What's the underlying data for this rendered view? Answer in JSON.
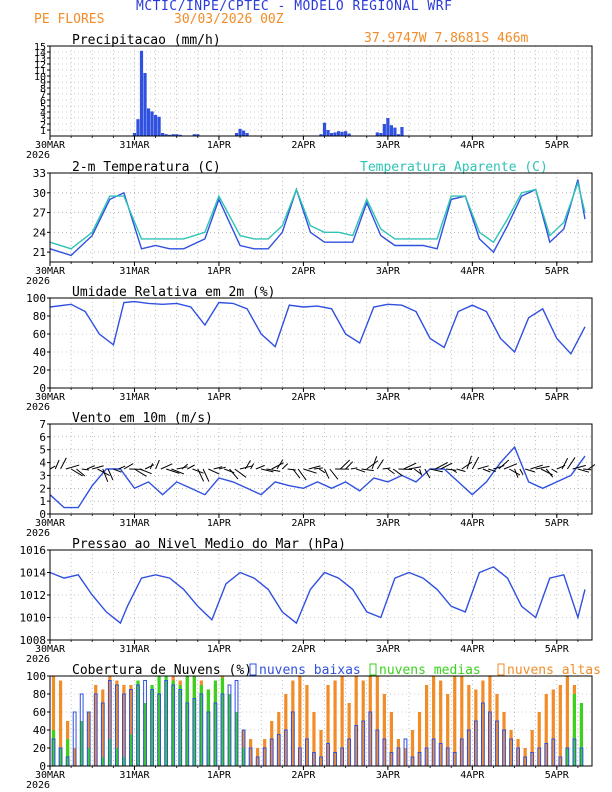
{
  "header": {
    "title": "MCTIC/INPE/CPTEC - MODELO REGIONAL WRF",
    "location": "PE FLORES",
    "run": "30/03/2026 00Z",
    "coords": "37.9747W 7.8681S 466m"
  },
  "colors": {
    "title": "#2b3bd9",
    "orange": "#f28c28",
    "blue": "#3050e0",
    "cyan": "#2ec4b6",
    "green": "#3bd11f",
    "black": "#000000",
    "grid": "#999999"
  },
  "days": {
    "labels": [
      "30MAR",
      "31MAR",
      "1APR",
      "2APR",
      "3APR",
      "4APR",
      "5APR"
    ],
    "year": "2026"
  },
  "chart_data": [
    {
      "id": "precip",
      "type": "bar",
      "title": "Precipitacao (mm/h)",
      "ylim": [
        0,
        15
      ],
      "yticks": [
        1,
        2,
        3,
        4,
        5,
        6,
        7,
        8,
        9,
        10,
        11,
        12,
        13,
        14,
        15
      ],
      "x_unit": "hours since 30/03/2026 00Z",
      "x": [
        24,
        25,
        26,
        27,
        28,
        29,
        30,
        31,
        32,
        33,
        34,
        35,
        36,
        37,
        41,
        42,
        53,
        54,
        55,
        56,
        77,
        78,
        79,
        80,
        81,
        82,
        83,
        84,
        85,
        93,
        94,
        95,
        96,
        97,
        98,
        99,
        100
      ],
      "values": [
        0.5,
        2.8,
        14.2,
        10.5,
        4.6,
        4.1,
        3.5,
        3.2,
        0.5,
        0.3,
        0.2,
        0.3,
        0.3,
        0.2,
        0.3,
        0.3,
        0.5,
        1.2,
        0.9,
        0.5,
        0.3,
        2.2,
        1.0,
        0.5,
        0.6,
        0.8,
        0.7,
        0.8,
        0.4,
        0.6,
        0.5,
        2.0,
        3.0,
        1.8,
        1.4,
        0.3,
        1.5
      ]
    },
    {
      "id": "temp",
      "type": "line",
      "title": "2-m Temperatura (C)",
      "ylim": [
        19.5,
        33
      ],
      "yticks": [
        21,
        24,
        27,
        30,
        33
      ],
      "series": [
        {
          "name": "Temperatura (C)",
          "x": [
            0,
            6,
            12,
            17,
            21,
            26,
            30,
            34,
            38,
            44,
            48,
            54,
            58,
            62,
            66,
            70,
            74,
            78,
            82,
            86,
            90,
            94,
            98,
            102,
            106,
            110,
            114,
            118,
            122,
            126,
            130,
            134,
            138,
            142,
            146,
            150,
            152
          ],
          "values": [
            21.5,
            20.5,
            23.5,
            29,
            30,
            21.5,
            22,
            21.5,
            21.5,
            23,
            29,
            22,
            21.5,
            21.5,
            24,
            30.5,
            24,
            22.5,
            22.5,
            22.5,
            28.5,
            23.5,
            22,
            22,
            22,
            21.5,
            29,
            29.5,
            23,
            21,
            25,
            29.5,
            30.5,
            22.5,
            24.5,
            32,
            26
          ]
        },
        {
          "name": "Temperatura Aparente (C)",
          "x": [
            0,
            6,
            12,
            17,
            21,
            26,
            30,
            34,
            38,
            44,
            48,
            54,
            58,
            62,
            66,
            70,
            74,
            78,
            82,
            86,
            90,
            94,
            98,
            102,
            106,
            110,
            114,
            118,
            122,
            126,
            130,
            134,
            138,
            142,
            146,
            150,
            152
          ],
          "values": [
            22.5,
            21.5,
            24,
            29.5,
            29.5,
            23,
            23,
            23,
            23,
            24,
            29.5,
            23.5,
            23,
            23,
            25,
            30.5,
            25,
            24,
            24,
            23.5,
            29,
            24.5,
            23,
            23,
            23,
            23,
            29.5,
            29.5,
            24,
            22.5,
            26,
            30,
            30.5,
            23.5,
            25.5,
            31.5,
            27
          ]
        }
      ],
      "legend": [
        "Temperatura Aparente (C)"
      ]
    },
    {
      "id": "rh",
      "type": "line",
      "title": "Umidade Relativa em 2m (%)",
      "ylim": [
        0,
        100
      ],
      "yticks": [
        0,
        20,
        40,
        60,
        80,
        100
      ],
      "series": [
        {
          "name": "Umidade Relativa",
          "x": [
            0,
            6,
            10,
            14,
            18,
            21,
            24,
            28,
            32,
            36,
            40,
            44,
            48,
            52,
            56,
            60,
            64,
            68,
            72,
            76,
            80,
            84,
            88,
            92,
            96,
            100,
            104,
            108,
            112,
            116,
            120,
            124,
            128,
            132,
            136,
            140,
            144,
            148,
            152
          ],
          "values": [
            90,
            93,
            85,
            60,
            48,
            95,
            96,
            94,
            93,
            94,
            90,
            70,
            95,
            94,
            88,
            60,
            46,
            92,
            90,
            91,
            88,
            60,
            50,
            90,
            93,
            92,
            85,
            55,
            45,
            85,
            92,
            85,
            55,
            40,
            78,
            88,
            55,
            38,
            68
          ]
        }
      ]
    },
    {
      "id": "wind",
      "type": "line",
      "title": "Vento em 10m (m/s)",
      "ylim": [
        0,
        7
      ],
      "yticks": [
        0,
        1,
        2,
        3,
        4,
        5,
        6,
        7
      ],
      "series": [
        {
          "name": "Vento",
          "x": [
            0,
            4,
            8,
            12,
            16,
            20,
            24,
            28,
            32,
            36,
            40,
            44,
            48,
            52,
            56,
            60,
            64,
            68,
            72,
            76,
            80,
            84,
            88,
            92,
            96,
            100,
            104,
            108,
            112,
            116,
            120,
            124,
            128,
            132,
            136,
            140,
            144,
            148,
            152
          ],
          "values": [
            1.5,
            0.5,
            0.5,
            2.2,
            3.5,
            3.5,
            2.0,
            2.5,
            1.5,
            2.5,
            2.0,
            1.5,
            2.8,
            2.5,
            2.0,
            1.5,
            2.5,
            2.2,
            2.0,
            2.5,
            2.0,
            2.5,
            1.8,
            2.8,
            2.5,
            3.0,
            2.5,
            3.5,
            3.5,
            2.5,
            1.5,
            2.5,
            4.0,
            5.2,
            2.5,
            2.0,
            2.5,
            3.0,
            4.5
          ]
        }
      ],
      "vectors": "wind barbs along y = 3.5"
    },
    {
      "id": "pres",
      "type": "line",
      "title": "Pressao ao Nivel Medio do Mar (hPa)",
      "ylim": [
        1008,
        1016
      ],
      "yticks": [
        1008,
        1010,
        1012,
        1014,
        1016
      ],
      "series": [
        {
          "name": "Pressao",
          "x": [
            0,
            4,
            8,
            12,
            16,
            20,
            22,
            26,
            30,
            34,
            38,
            42,
            46,
            50,
            54,
            58,
            62,
            66,
            70,
            74,
            78,
            82,
            86,
            90,
            94,
            98,
            102,
            106,
            110,
            114,
            118,
            122,
            126,
            130,
            134,
            138,
            142,
            146,
            150,
            152
          ],
          "values": [
            1014,
            1013.5,
            1013.8,
            1012,
            1010.5,
            1009.5,
            1011,
            1013.5,
            1013.8,
            1013.5,
            1012.5,
            1011,
            1009.8,
            1013,
            1014,
            1013.5,
            1012.5,
            1010.5,
            1009.5,
            1012.5,
            1014,
            1013.5,
            1012.5,
            1010.5,
            1010,
            1013.5,
            1014,
            1013.5,
            1012.5,
            1011,
            1010.5,
            1014,
            1014.5,
            1013.5,
            1011,
            1010,
            1013.5,
            1013.8,
            1010,
            1012.5
          ]
        }
      ]
    },
    {
      "id": "cloud",
      "type": "bar",
      "title": "Cobertura de Nuvens (%)",
      "ylim": [
        0,
        100
      ],
      "yticks": [
        0,
        20,
        40,
        60,
        80,
        100
      ],
      "legend": [
        "nuvens baixas",
        "nuvens medias",
        "nuvens altas"
      ],
      "series": [
        {
          "name": "nuvens baixas",
          "x": [
            1,
            3,
            5,
            7,
            9,
            11,
            13,
            15,
            17,
            19,
            21,
            23,
            25,
            27,
            29,
            31,
            33,
            35,
            37,
            39,
            41,
            43,
            45,
            47,
            49,
            51,
            53,
            55,
            57,
            59,
            61,
            63,
            65,
            67,
            69,
            71,
            73,
            75,
            77,
            79,
            81,
            83,
            85,
            87,
            89,
            91,
            93,
            95,
            97,
            99,
            101,
            103,
            105,
            107,
            109,
            111,
            113,
            115,
            117,
            119,
            121,
            123,
            125,
            127,
            129,
            131,
            133,
            135,
            137,
            139,
            141,
            143,
            145,
            147,
            149,
            151
          ],
          "values": [
            30,
            20,
            10,
            60,
            80,
            60,
            80,
            70,
            95,
            90,
            80,
            85,
            90,
            95,
            85,
            80,
            95,
            90,
            85,
            70,
            75,
            80,
            60,
            70,
            80,
            90,
            95,
            40,
            20,
            10,
            20,
            30,
            35,
            40,
            60,
            20,
            30,
            15,
            10,
            25,
            15,
            20,
            30,
            45,
            50,
            60,
            40,
            30,
            15,
            20,
            30,
            10,
            15,
            20,
            30,
            25,
            20,
            15,
            30,
            40,
            50,
            70,
            60,
            50,
            40,
            30,
            20,
            10,
            15,
            20,
            25,
            30,
            10,
            20,
            30,
            20
          ]
        },
        {
          "name": "nuvens medias",
          "x": [
            1,
            3,
            5,
            9,
            11,
            15,
            17,
            19,
            21,
            23,
            25,
            27,
            29,
            31,
            33,
            35,
            37,
            39,
            41,
            43,
            45,
            47,
            49,
            51,
            53,
            55,
            147,
            149,
            151
          ],
          "values": [
            40,
            20,
            30,
            50,
            20,
            10,
            30,
            20,
            10,
            35,
            95,
            70,
            90,
            100,
            100,
            95,
            90,
            100,
            100,
            90,
            85,
            95,
            98,
            80,
            60,
            20,
            20,
            80,
            70
          ]
        },
        {
          "name": "nuvens altas",
          "x": [
            1,
            3,
            5,
            7,
            9,
            11,
            13,
            15,
            17,
            19,
            21,
            23,
            25,
            27,
            29,
            31,
            33,
            35,
            37,
            39,
            41,
            43,
            45,
            47,
            49,
            51,
            53,
            55,
            57,
            59,
            61,
            63,
            65,
            67,
            69,
            71,
            73,
            75,
            77,
            79,
            81,
            83,
            85,
            87,
            89,
            91,
            93,
            95,
            97,
            99,
            101,
            103,
            105,
            107,
            109,
            111,
            113,
            115,
            117,
            119,
            121,
            123,
            125,
            127,
            129,
            131,
            133,
            135,
            137,
            139,
            141,
            143,
            145,
            147,
            149,
            151
          ],
          "values": [
            100,
            95,
            50,
            20,
            40,
            60,
            90,
            85,
            100,
            95,
            90,
            90,
            80,
            70,
            60,
            80,
            95,
            100,
            95,
            100,
            100,
            95,
            85,
            90,
            100,
            80,
            60,
            40,
            30,
            20,
            30,
            50,
            60,
            80,
            95,
            100,
            90,
            60,
            40,
            90,
            95,
            100,
            70,
            100,
            95,
            100,
            100,
            80,
            60,
            30,
            20,
            40,
            60,
            90,
            100,
            95,
            80,
            100,
            100,
            90,
            85,
            95,
            100,
            80,
            60,
            40,
            30,
            20,
            40,
            60,
            80,
            85,
            90,
            100,
            90,
            60
          ]
        }
      ]
    }
  ]
}
